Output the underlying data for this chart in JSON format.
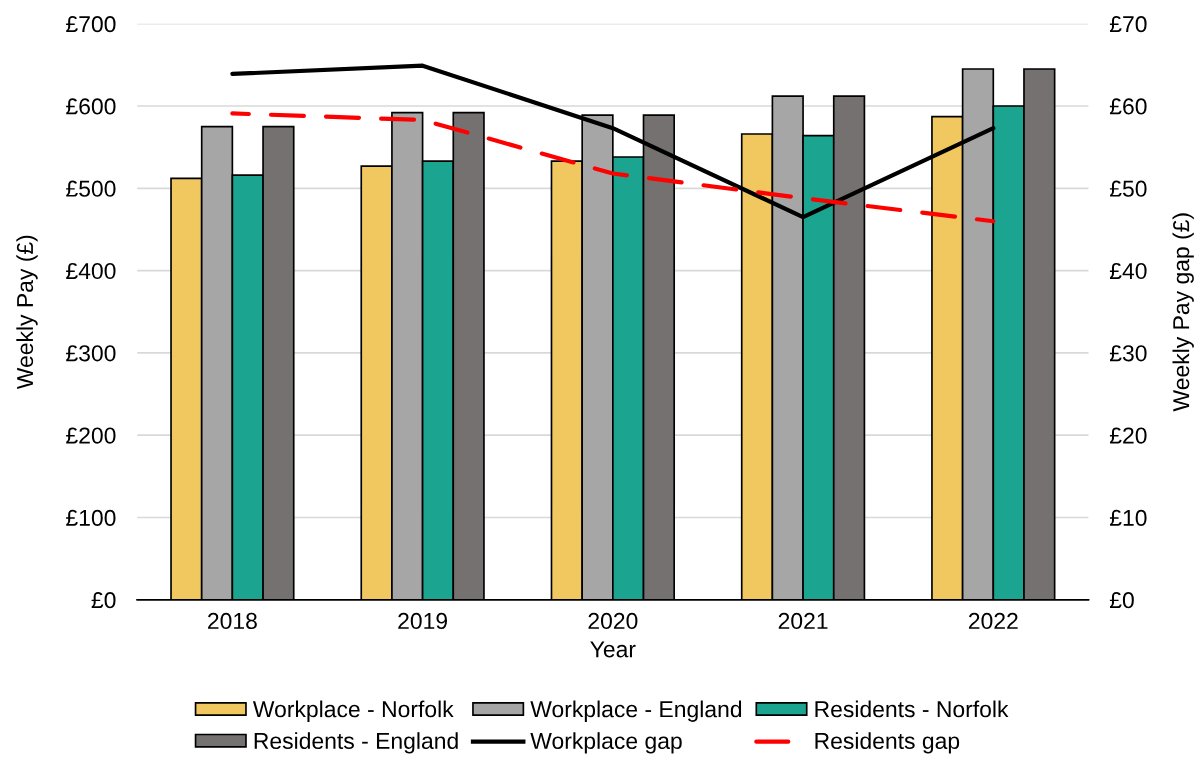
{
  "chart_data": {
    "type": "bar",
    "xlabel": "Year",
    "ylabel": "Weekly Pay (£)",
    "y2label": "Weekly Pay gap (£)",
    "categories": [
      "2018",
      "2019",
      "2020",
      "2021",
      "2022"
    ],
    "series": [
      {
        "name": "Workplace - Norfolk",
        "color": "#f1c75f",
        "values": [
          512,
          527,
          533,
          566,
          587
        ]
      },
      {
        "name": "Workplace - England",
        "color": "#a6a6a6",
        "values": [
          575,
          592,
          589,
          612,
          645
        ]
      },
      {
        "name": "Residents - Norfolk",
        "color": "#1ba591",
        "values": [
          516,
          533,
          538,
          564,
          600
        ]
      },
      {
        "name": "Residents - England",
        "color": "#767171",
        "values": [
          575,
          592,
          589,
          612,
          645
        ]
      },
      {
        "name": "Workplace gap",
        "type": "line",
        "axis": "y2",
        "color": "#000000",
        "line_style": "solid",
        "values": [
          63.9,
          64.9,
          57.3,
          46.5,
          57.3
        ]
      },
      {
        "name": "Residents gap",
        "type": "line",
        "axis": "y2",
        "color": "#ff0000",
        "line_style": "dashed",
        "values": [
          59.1,
          58.3,
          51.8,
          48.8,
          46.0
        ]
      }
    ],
    "ylim": [
      0,
      700
    ],
    "yticks": [
      {
        "value": 0,
        "label": "£0"
      },
      {
        "value": 100,
        "label": "£100"
      },
      {
        "value": 200,
        "label": "£200"
      },
      {
        "value": 300,
        "label": "£300"
      },
      {
        "value": 400,
        "label": "£400"
      },
      {
        "value": 500,
        "label": "£500"
      },
      {
        "value": 600,
        "label": "£600"
      },
      {
        "value": 700,
        "label": "£700"
      }
    ],
    "y2lim": [
      0,
      70
    ],
    "y2ticks": [
      {
        "value": 0,
        "label": "£0"
      },
      {
        "value": 10,
        "label": "£10"
      },
      {
        "value": 20,
        "label": "£20"
      },
      {
        "value": 30,
        "label": "£30"
      },
      {
        "value": 40,
        "label": "£40"
      },
      {
        "value": 50,
        "label": "£50"
      },
      {
        "value": 60,
        "label": "£60"
      },
      {
        "value": 70,
        "label": "£70"
      }
    ],
    "grid": "y",
    "legend": "bottom"
  }
}
